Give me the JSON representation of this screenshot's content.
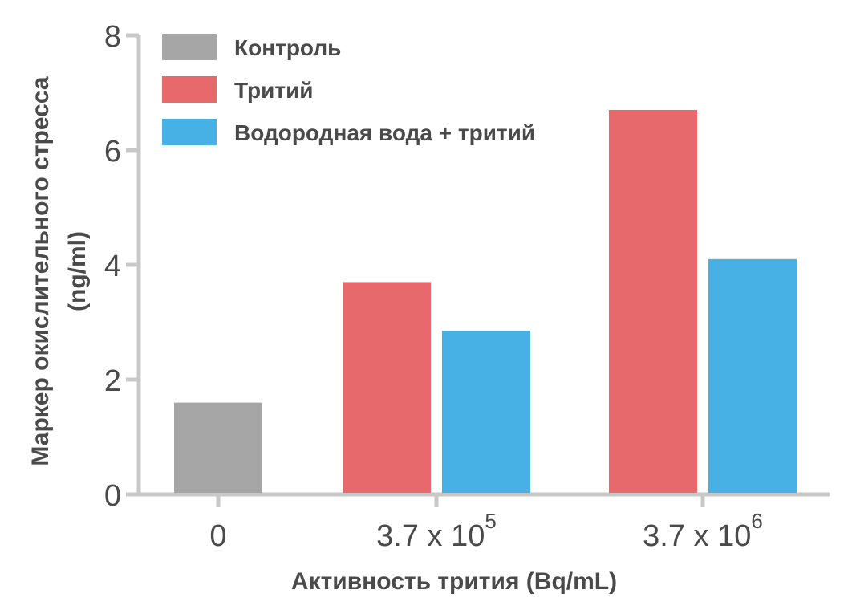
{
  "chart_data": {
    "type": "bar",
    "categories": [
      "0",
      "3.7 x 10^5",
      "3.7 x 10^6"
    ],
    "category_labels": [
      {
        "base": "0",
        "sup": ""
      },
      {
        "base": "3.7 x 10",
        "sup": "5"
      },
      {
        "base": "3.7 x 10",
        "sup": "6"
      }
    ],
    "series": [
      {
        "name": "Контроль",
        "color": "#a6a6a6",
        "values": [
          1.6,
          null,
          null
        ]
      },
      {
        "name": "Тритий",
        "color": "#e8696b",
        "values": [
          null,
          3.7,
          6.7
        ]
      },
      {
        "name": "Водородная вода + тритий",
        "color": "#47b0e4",
        "values": [
          null,
          2.85,
          4.1
        ]
      }
    ],
    "xlabel": "Активность трития (Bq/mL)",
    "ylabel_lines": [
      "Маркер окислительного стресса",
      "(ng/ml)"
    ],
    "ylim": [
      0,
      8
    ],
    "yticks": [
      0,
      2,
      4,
      6,
      8
    ],
    "legend_position": "top-left",
    "grid": false,
    "axis_color": "#c8c8c8"
  }
}
